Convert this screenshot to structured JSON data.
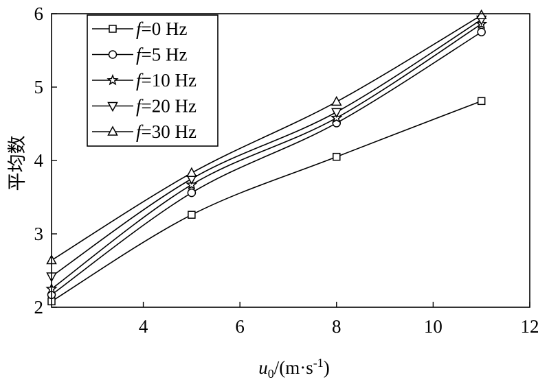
{
  "chart_data": {
    "type": "line",
    "title": "",
    "xlabel": {
      "var": "u",
      "sub": "0",
      "unit_open": "/(m·s",
      "sup": "-1",
      "unit_close": ")"
    },
    "ylabel": "平均数",
    "xlim": [
      2.1,
      12
    ],
    "ylim": [
      2,
      6
    ],
    "xticks": [
      4,
      6,
      8,
      10,
      12
    ],
    "yticks": [
      2,
      3,
      4,
      5,
      6
    ],
    "grid": false,
    "legend_position": "top-left",
    "x": [
      2.1,
      5,
      8,
      11
    ],
    "series": [
      {
        "name": "f=0 Hz",
        "legend_var": "f",
        "legend_rest": "=0 Hz",
        "marker": "square",
        "values": [
          2.08,
          3.26,
          4.05,
          4.81
        ]
      },
      {
        "name": "f=5 Hz",
        "legend_var": "f",
        "legend_rest": "=5 Hz",
        "marker": "circle",
        "values": [
          2.17,
          3.56,
          4.51,
          5.75
        ]
      },
      {
        "name": "f=10 Hz",
        "legend_var": "f",
        "legend_rest": "=10 Hz",
        "marker": "star",
        "values": [
          2.25,
          3.67,
          4.58,
          5.86
        ]
      },
      {
        "name": "f=20 Hz",
        "legend_var": "f",
        "legend_rest": "=20 Hz",
        "marker": "triangle-down",
        "values": [
          2.42,
          3.75,
          4.66,
          5.92
        ]
      },
      {
        "name": "f=30 Hz",
        "legend_var": "f",
        "legend_rest": "=30 Hz",
        "marker": "triangle-up",
        "values": [
          2.64,
          3.83,
          4.8,
          5.98
        ]
      }
    ],
    "colors": {
      "line": "#000000",
      "marker_fill": "#ffffff",
      "background": "#ffffff"
    }
  }
}
